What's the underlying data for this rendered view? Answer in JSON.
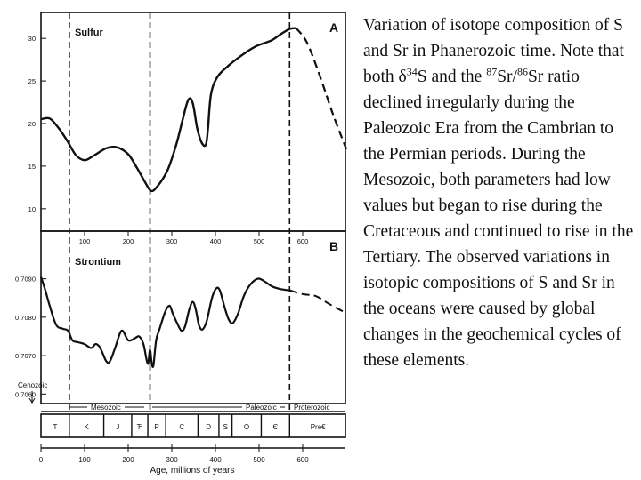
{
  "caption": {
    "p1": "Variation of isotope composition of S and Sr in Phanerozoic time. Note that both δ",
    "sup1": "34",
    "p2": "S and the ",
    "sup2": "87",
    "p3": "Sr/",
    "sup3": "86",
    "p4": "Sr ratio declined irregularly during the Paleozoic Era from the Cambrian to the Permian periods. During the Mesozoic, both parameters had low values but began to rise during the Cretaceous and continued to rise in the Tertiary. The observed variations in isotopic compositions of S and Sr in the oceans were caused by global changes in the geochemical cycles of these elements."
  },
  "chart_data": [
    {
      "type": "line",
      "panel_letter": "A",
      "title": "Sulfur",
      "xlim": [
        0,
        700
      ],
      "ylim": [
        8,
        32
      ],
      "yticks": [
        10,
        15,
        20,
        25,
        30
      ],
      "xticks": [
        100,
        200,
        300,
        400,
        500,
        600
      ],
      "solid": [
        [
          0,
          20.5
        ],
        [
          20,
          20.6
        ],
        [
          40,
          19.5
        ],
        [
          60,
          18.0
        ],
        [
          80,
          16.3
        ],
        [
          100,
          15.7
        ],
        [
          120,
          16.2
        ],
        [
          150,
          17.1
        ],
        [
          175,
          17.2
        ],
        [
          200,
          16.4
        ],
        [
          220,
          14.8
        ],
        [
          240,
          13.0
        ],
        [
          252,
          12.1
        ],
        [
          265,
          12.5
        ],
        [
          290,
          14.5
        ],
        [
          310,
          17.5
        ],
        [
          325,
          20.5
        ],
        [
          338,
          22.8
        ],
        [
          348,
          22.4
        ],
        [
          358,
          19.5
        ],
        [
          368,
          17.8
        ],
        [
          378,
          17.5
        ],
        [
          383,
          19.5
        ],
        [
          390,
          23.5
        ],
        [
          405,
          25.5
        ],
        [
          430,
          26.8
        ],
        [
          460,
          28.0
        ],
        [
          490,
          29.0
        ],
        [
          515,
          29.5
        ],
        [
          530,
          29.8
        ],
        [
          550,
          30.5
        ],
        [
          570,
          31.1
        ],
        [
          585,
          31.2
        ]
      ],
      "dashed": [
        [
          585,
          31.2
        ],
        [
          610,
          29.5
        ],
        [
          640,
          25.5
        ],
        [
          670,
          21.0
        ],
        [
          700,
          17.0
        ]
      ],
      "boundaries": [
        65,
        250,
        570
      ]
    },
    {
      "type": "line",
      "panel_letter": "B",
      "title": "Strontium",
      "xlim": [
        0,
        700
      ],
      "ylim": [
        0.7058,
        0.7095
      ],
      "yticks": [
        0.706,
        0.707,
        0.708,
        0.709
      ],
      "ytick_labels": [
        "0.7060",
        "0.7070",
        "0.7080",
        "0.7090"
      ],
      "xticks": [
        100,
        200,
        300,
        400,
        500,
        600
      ],
      "solid": [
        [
          0,
          0.70905
        ],
        [
          10,
          0.7087
        ],
        [
          20,
          0.7083
        ],
        [
          35,
          0.7078
        ],
        [
          50,
          0.7077
        ],
        [
          62,
          0.70765
        ],
        [
          72,
          0.7074
        ],
        [
          85,
          0.70735
        ],
        [
          100,
          0.7073
        ],
        [
          115,
          0.7072
        ],
        [
          125,
          0.7073
        ],
        [
          133,
          0.70725
        ],
        [
          140,
          0.7071
        ],
        [
          150,
          0.70685
        ],
        [
          158,
          0.70685
        ],
        [
          170,
          0.7072
        ],
        [
          185,
          0.70765
        ],
        [
          200,
          0.7074
        ],
        [
          215,
          0.70745
        ],
        [
          225,
          0.7075
        ],
        [
          235,
          0.7073
        ],
        [
          242,
          0.7069
        ],
        [
          246,
          0.7068
        ],
        [
          250,
          0.70715
        ],
        [
          254,
          0.7068
        ],
        [
          258,
          0.70675
        ],
        [
          264,
          0.7074
        ],
        [
          272,
          0.7077
        ],
        [
          285,
          0.70815
        ],
        [
          295,
          0.7083
        ],
        [
          302,
          0.7081
        ],
        [
          312,
          0.70785
        ],
        [
          322,
          0.70765
        ],
        [
          330,
          0.70775
        ],
        [
          340,
          0.7082
        ],
        [
          348,
          0.7084
        ],
        [
          355,
          0.7082
        ],
        [
          362,
          0.7078
        ],
        [
          370,
          0.70768
        ],
        [
          380,
          0.7079
        ],
        [
          392,
          0.7085
        ],
        [
          402,
          0.70875
        ],
        [
          410,
          0.7087
        ],
        [
          420,
          0.7083
        ],
        [
          430,
          0.70795
        ],
        [
          440,
          0.70785
        ],
        [
          452,
          0.7081
        ],
        [
          465,
          0.70855
        ],
        [
          480,
          0.70885
        ],
        [
          497,
          0.709
        ],
        [
          510,
          0.70895
        ],
        [
          530,
          0.7088
        ],
        [
          550,
          0.70873
        ],
        [
          570,
          0.7087
        ]
      ],
      "dashed": [
        [
          570,
          0.7087
        ],
        [
          600,
          0.7086
        ],
        [
          630,
          0.70855
        ],
        [
          660,
          0.70835
        ],
        [
          700,
          0.7081
        ]
      ],
      "boundaries": [
        65,
        250,
        570
      ],
      "era_labels": [
        "Cenozoic",
        "Mesozoic",
        "Paleozoic",
        "Proterozoic"
      ],
      "period_labels": [
        "T",
        "K",
        "J",
        "Ћ",
        "P",
        "C",
        "D",
        "S",
        "O",
        "Є",
        "Pre€"
      ],
      "period_boundaries": [
        0,
        65,
        144,
        208,
        245,
        286,
        360,
        408,
        438,
        505,
        570,
        700
      ]
    }
  ],
  "x_axis": {
    "title": "Age, millions of years",
    "ticks": [
      0,
      100,
      200,
      300,
      400,
      500,
      600
    ],
    "tick_labels": [
      "0",
      "100",
      "200",
      "300",
      "400",
      "500",
      "600"
    ]
  }
}
